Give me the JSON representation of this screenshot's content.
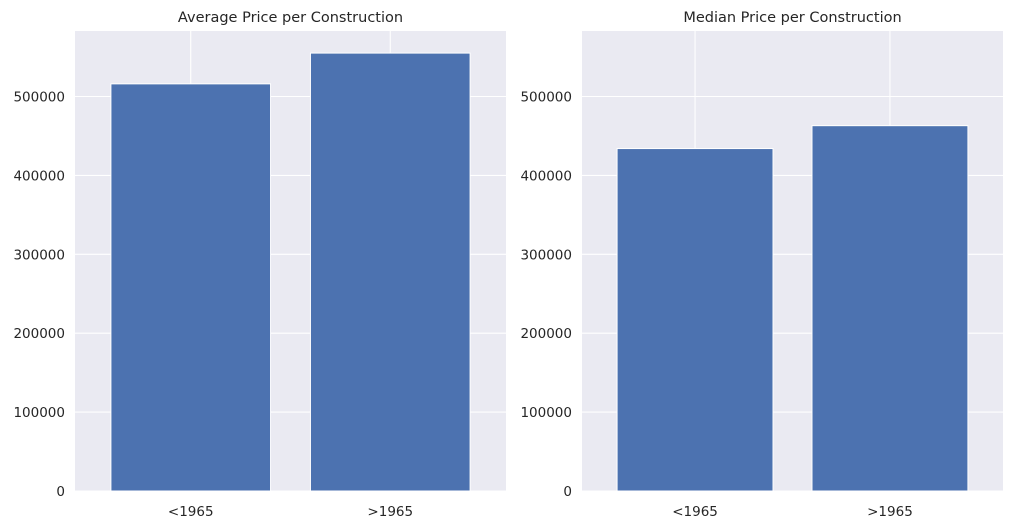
{
  "chart_data": [
    {
      "type": "bar",
      "title": "Average Price per Construction",
      "categories": [
        "<1965",
        ">1965"
      ],
      "values": [
        516000,
        555000
      ],
      "ylim": [
        0,
        583000
      ],
      "yticks": [
        "0",
        "100000",
        "200000",
        "300000",
        "400000",
        "500000"
      ],
      "xlabel": "",
      "ylabel": "",
      "grid": true
    },
    {
      "type": "bar",
      "title": "Median Price per Construction",
      "categories": [
        "<1965",
        ">1965"
      ],
      "values": [
        434000,
        463000
      ],
      "ylim": [
        0,
        583000
      ],
      "yticks": [
        "0",
        "100000",
        "200000",
        "300000",
        "400000",
        "500000"
      ],
      "xlabel": "",
      "ylabel": "",
      "grid": true
    }
  ],
  "colors": {
    "bar": "#4c72b0",
    "plot_background": "#eaeaf2",
    "grid": "#ffffff",
    "text": "#262626"
  }
}
